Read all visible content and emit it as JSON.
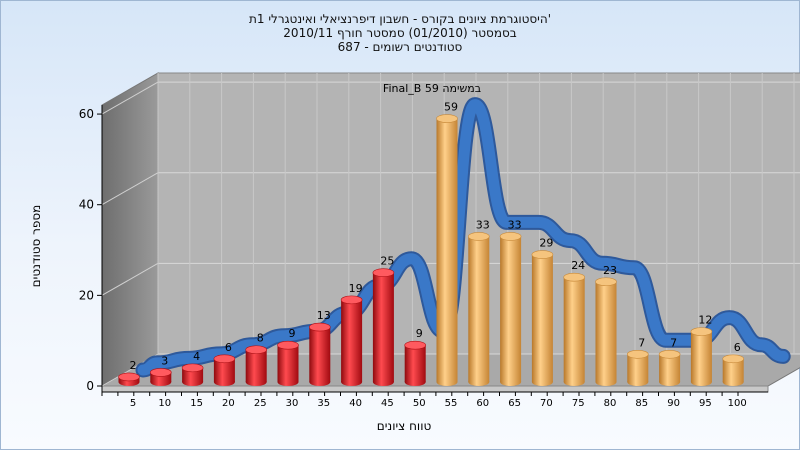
{
  "chart_data": {
    "type": "bar",
    "title_lines": [
      "היסטוגרמת ציונים בקורס - חשבון דיפרנציאלי ואינטגרלי 1ת'",
      "בסמסטר  (01/2010)  סמסטר חורף  2010/11",
      "687 - סטודנטים רשומים"
    ],
    "xlabel": "טווח ציונים",
    "ylabel": "מספר סטודנטים",
    "categories": [
      "5",
      "10",
      "15",
      "20",
      "25",
      "30",
      "35",
      "40",
      "45",
      "50",
      "55",
      "60",
      "65",
      "70",
      "75",
      "80",
      "85",
      "90",
      "95",
      "100"
    ],
    "values": [
      2,
      3,
      4,
      6,
      8,
      9,
      13,
      19,
      25,
      9,
      59,
      33,
      33,
      29,
      24,
      23,
      7,
      7,
      12,
      6
    ],
    "bar_colors": {
      "below_threshold": "#e0141a",
      "above_threshold": "#e8a84c",
      "threshold_index": 10
    },
    "curve_label": "Final_B במשימה 59",
    "curve_color": "#3a78c8",
    "yticks": [
      0,
      20,
      40,
      60
    ],
    "ylim": [
      0,
      62
    ],
    "grid": true
  }
}
